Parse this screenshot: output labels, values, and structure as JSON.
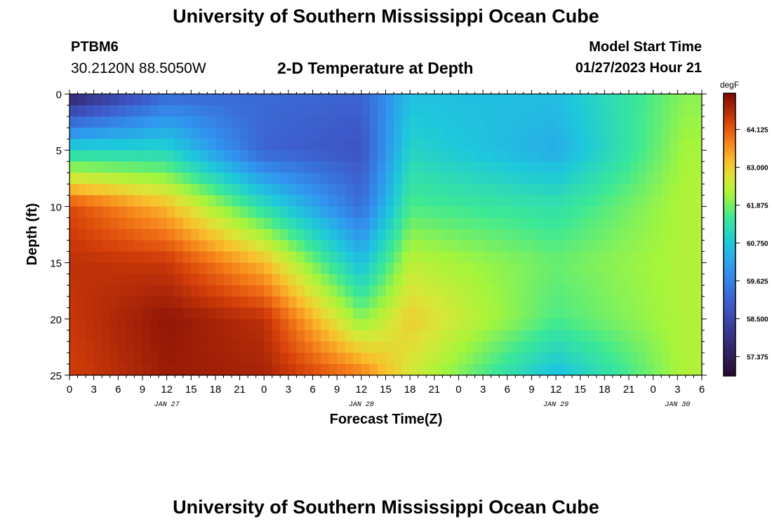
{
  "header": {
    "title_top": "University of Southern Mississippi Ocean Cube",
    "title_bottom": "University of Southern Mississippi Ocean Cube",
    "station_id": "PTBM6",
    "coordinates": "30.2120N  88.5050W",
    "subtitle": "2-D Temperature at Depth",
    "model_start_label": "Model Start Time",
    "model_start_value": "01/27/2023 Hour 21"
  },
  "chart_data": {
    "type": "heatmap",
    "title": "2-D Temperature at Depth",
    "xlabel": "Forecast Time(Z)",
    "ylabel": "Depth (ft)",
    "x_tick_labels": [
      "0",
      "3",
      "6",
      "9",
      "12",
      "15",
      "18",
      "21",
      "0",
      "3",
      "6",
      "9",
      "12",
      "15",
      "18",
      "21",
      "0",
      "3",
      "6",
      "9",
      "12",
      "15",
      "18",
      "21",
      "0",
      "3",
      "6"
    ],
    "x_range_hours": [
      0,
      78
    ],
    "date_labels": [
      {
        "label": "JAN 27",
        "at_hour": 12
      },
      {
        "label": "JAN 28",
        "at_hour": 36
      },
      {
        "label": "JAN 29",
        "at_hour": 60
      },
      {
        "label": "JAN 30",
        "at_hour": 75
      }
    ],
    "y_tick_labels": [
      "0",
      "5",
      "10",
      "15",
      "20",
      "25"
    ],
    "y_range_ft": [
      0,
      25
    ],
    "colorbar": {
      "unit": "degF",
      "min": 56.8,
      "max": 65.2,
      "tick_labels": [
        "64.125",
        "63.000",
        "61.875",
        "60.750",
        "59.625",
        "58.500",
        "57.375"
      ],
      "tick_values": [
        64.125,
        63.0,
        61.875,
        60.75,
        59.625,
        58.5,
        57.375
      ]
    },
    "description_of_field": "Warm (~64-65F) water below ~8 ft during hours 0-30, cold surface layer (~58-59F) from hour 3 to 45; transition near hour 36-42; later uniform ~61-62.5F",
    "grid_resolution": {
      "time_steps": 78,
      "depth_levels": 25
    },
    "sample_profiles": [
      {
        "hour": 0,
        "depths_ft": [
          0,
          5,
          10,
          15,
          20,
          25
        ],
        "temps_degF": [
          57.5,
          61.0,
          64.3,
          64.6,
          64.5,
          64.4
        ]
      },
      {
        "hour": 12,
        "depths_ft": [
          0,
          5,
          10,
          15,
          20,
          25
        ],
        "temps_degF": [
          59.2,
          61.0,
          63.2,
          64.5,
          65.0,
          64.9
        ]
      },
      {
        "hour": 24,
        "depths_ft": [
          0,
          5,
          10,
          15,
          20,
          25
        ],
        "temps_degF": [
          59.2,
          59.1,
          61.2,
          63.2,
          64.6,
          64.8
        ]
      },
      {
        "hour": 36,
        "depths_ft": [
          0,
          5,
          10,
          15,
          20,
          25
        ],
        "temps_degF": [
          59.1,
          58.8,
          59.3,
          60.6,
          62.0,
          63.8
        ]
      },
      {
        "hour": 42,
        "depths_ft": [
          0,
          5,
          10,
          15,
          20,
          25
        ],
        "temps_degF": [
          60.6,
          61.0,
          61.6,
          62.4,
          63.0,
          62.6
        ]
      },
      {
        "hour": 60,
        "depths_ft": [
          0,
          5,
          10,
          15,
          20,
          25
        ],
        "temps_degF": [
          60.6,
          60.3,
          61.3,
          61.8,
          61.6,
          60.6
        ]
      },
      {
        "hour": 76,
        "depths_ft": [
          0,
          5,
          10,
          15,
          20,
          25
        ],
        "temps_degF": [
          62.0,
          62.2,
          62.3,
          62.3,
          62.3,
          62.3
        ]
      }
    ]
  }
}
